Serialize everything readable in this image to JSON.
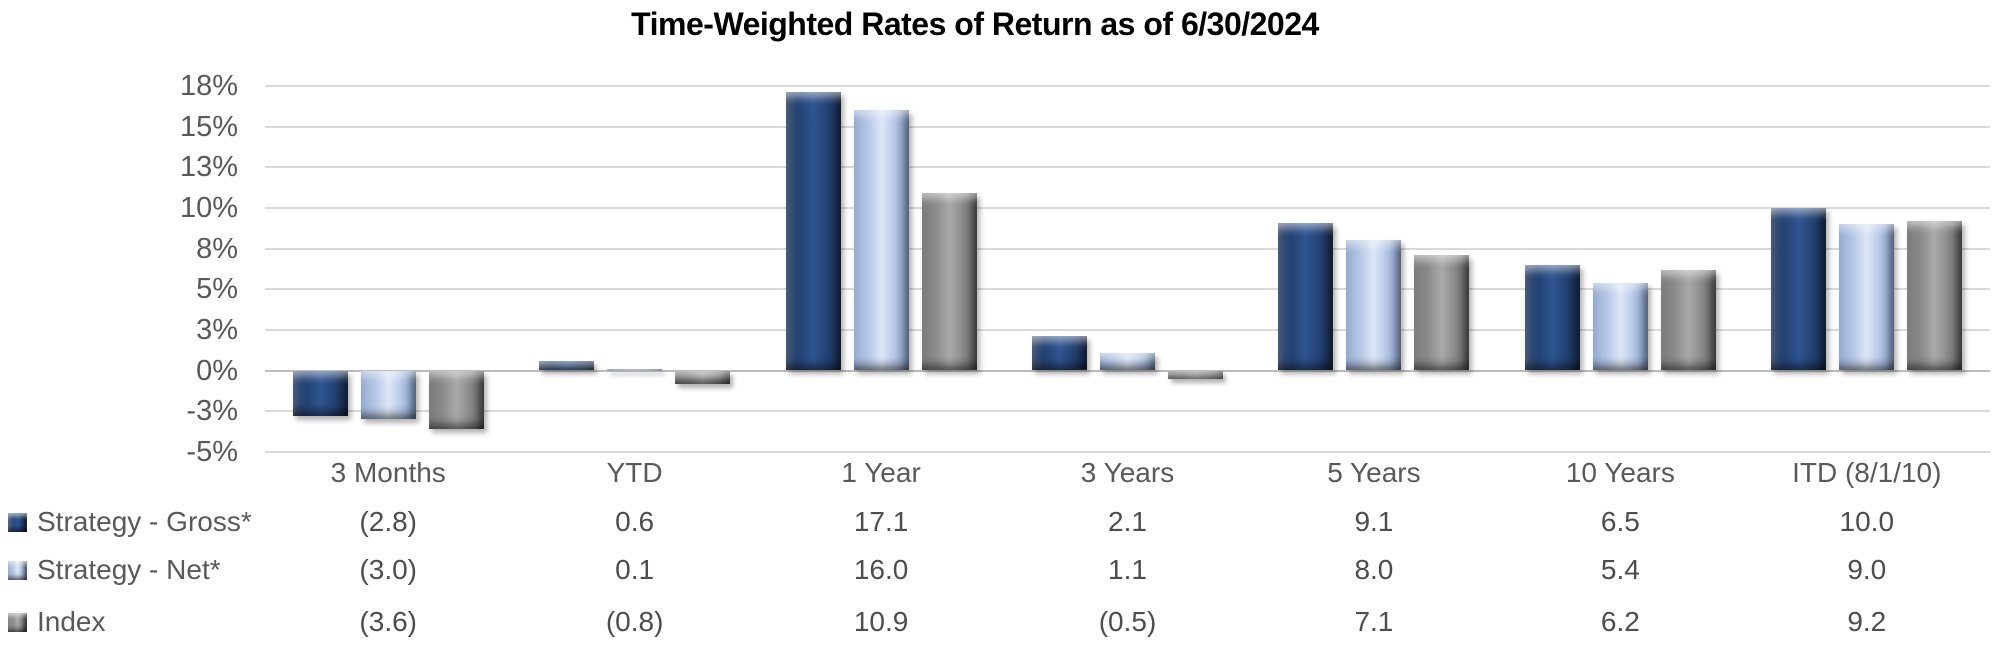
{
  "title": "Time-Weighted Rates of Return as of 6/30/2024",
  "chart_data": {
    "type": "bar",
    "title": "Time-Weighted Rates of Return as of 6/30/2024",
    "categories": [
      "3 Months",
      "YTD",
      "1 Year",
      "3 Years",
      "5 Years",
      "10 Years",
      "ITD (8/1/10)"
    ],
    "series": [
      {
        "name": "Strategy - Gross*",
        "values": [
          -2.8,
          0.6,
          17.1,
          2.1,
          9.1,
          6.5,
          10.0
        ],
        "display": [
          "(2.8)",
          "0.6",
          "17.1",
          "2.1",
          "9.1",
          "6.5",
          "10.0"
        ],
        "color": {
          "edge": "#15294B",
          "body": "#1F3C6B",
          "light": "#2F5490"
        }
      },
      {
        "name": "Strategy - Net*",
        "values": [
          -3.0,
          0.1,
          16.0,
          1.1,
          8.0,
          5.4,
          9.0
        ],
        "display": [
          "(3.0)",
          "0.1",
          "16.0",
          "1.1",
          "8.0",
          "5.4",
          "9.0"
        ],
        "color": {
          "edge": "#7E96BE",
          "body": "#A6BBE0",
          "light": "#DDE7F6"
        }
      },
      {
        "name": "Index",
        "values": [
          -3.6,
          -0.8,
          10.9,
          -0.5,
          7.1,
          6.2,
          9.2
        ],
        "display": [
          "(3.6)",
          "(0.8)",
          "10.9",
          "(0.5)",
          "7.1",
          "6.2",
          "9.2"
        ],
        "color": {
          "edge": "#585858",
          "body": "#7F7F7F",
          "light": "#A9A9A9"
        }
      }
    ],
    "y_axis": {
      "ylim": [
        -5,
        17.5
      ],
      "ticks": [
        {
          "value": 17.5,
          "label": "18%"
        },
        {
          "value": 15,
          "label": "15%"
        },
        {
          "value": 12.5,
          "label": "13%"
        },
        {
          "value": 10,
          "label": "10%"
        },
        {
          "value": 7.5,
          "label": "8%"
        },
        {
          "value": 5,
          "label": "5%"
        },
        {
          "value": 2.5,
          "label": "3%"
        },
        {
          "value": 0,
          "label": "0%"
        },
        {
          "value": -2.5,
          "label": "-3%"
        },
        {
          "value": -5,
          "label": "-5%"
        }
      ]
    },
    "grid": true,
    "legend_position": "table-left"
  },
  "colors": {
    "gridline": "#D9D9D9",
    "zero_line": "#BDBDBD",
    "axis_text": "#595959",
    "table_text": "#4d4d4d",
    "title_text": "#000000",
    "background": "#FFFFFF"
  }
}
